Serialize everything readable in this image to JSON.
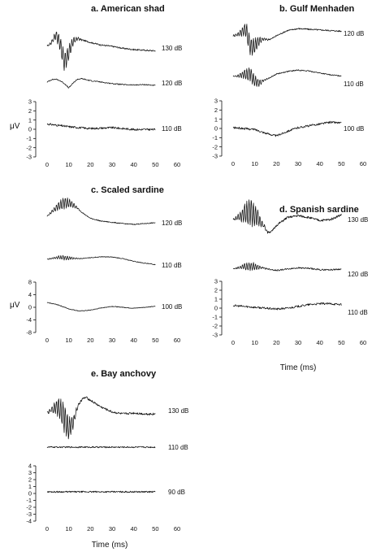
{
  "chart_data": [
    {
      "type": "line",
      "title": "a. American shad",
      "xlabel": "",
      "ylabel": "μV",
      "xlim": [
        0,
        60
      ],
      "ylim": [
        -3,
        3
      ],
      "x_ticks": [
        "0",
        "10",
        "20",
        "30",
        "40",
        "50",
        "60"
      ],
      "y_ticks": [
        "3",
        "2",
        "1",
        "0",
        "-1",
        "-2",
        "-3"
      ],
      "series": [
        {
          "name": "130 dB",
          "x": [
            0,
            2,
            4,
            6,
            8,
            10,
            12,
            14,
            16,
            18,
            20,
            25,
            30,
            35,
            40,
            45,
            50
          ],
          "values": [
            0.0,
            0.6,
            1.8,
            0.5,
            -2.5,
            -1.0,
            0.8,
            1.2,
            1.0,
            0.8,
            0.6,
            0.2,
            0.0,
            -0.3,
            -0.5,
            -0.6,
            -0.7
          ]
        },
        {
          "name": "120 dB",
          "x": [
            0,
            2,
            4,
            6,
            8,
            10,
            12,
            14,
            16,
            18,
            20,
            25,
            30,
            35,
            40,
            45,
            50
          ],
          "values": [
            0.0,
            0.5,
            0.6,
            0.3,
            -0.3,
            -1.2,
            -0.2,
            0.6,
            0.7,
            0.5,
            0.3,
            0.0,
            -0.3,
            -0.5,
            -0.6,
            -0.5,
            -0.7
          ]
        },
        {
          "name": "110 dB",
          "x": [
            0,
            10,
            20,
            30,
            40,
            50
          ],
          "values": [
            0.4,
            0.1,
            -0.1,
            0.0,
            -0.2,
            -0.2
          ]
        }
      ]
    },
    {
      "type": "line",
      "title": "b. Gulf Menhaden",
      "xlabel": "",
      "ylabel": "",
      "xlim": [
        0,
        60
      ],
      "ylim": [
        -3,
        3
      ],
      "x_ticks": [
        "0",
        "10",
        "20",
        "30",
        "40",
        "50",
        "60"
      ],
      "y_ticks": [
        "3",
        "2",
        "1",
        "0",
        "-1",
        "-2",
        "-3"
      ],
      "series": [
        {
          "name": "120 dB",
          "x": [
            0,
            2,
            4,
            6,
            8,
            10,
            12,
            14,
            16,
            18,
            20,
            25,
            30,
            35,
            40,
            45,
            50
          ],
          "values": [
            0.0,
            0.2,
            0.6,
            1.0,
            -1.8,
            -1.5,
            -0.8,
            -0.5,
            -0.6,
            -0.4,
            0.0,
            0.8,
            1.1,
            1.0,
            0.9,
            0.8,
            0.7
          ]
        },
        {
          "name": "110 dB",
          "x": [
            0,
            2,
            4,
            6,
            8,
            10,
            12,
            14,
            16,
            18,
            20,
            25,
            30,
            35,
            40,
            45,
            50
          ],
          "values": [
            0.0,
            0.1,
            0.3,
            0.5,
            0.4,
            -0.9,
            -1.4,
            -0.8,
            -0.5,
            0.0,
            0.5,
            1.0,
            1.3,
            1.1,
            0.7,
            0.3,
            0.1
          ]
        },
        {
          "name": "100 dB",
          "x": [
            0,
            5,
            10,
            15,
            20,
            25,
            30,
            35,
            40,
            45,
            50
          ],
          "values": [
            0.0,
            -0.1,
            -0.2,
            -0.6,
            -0.9,
            -0.4,
            0.0,
            0.2,
            0.4,
            0.6,
            0.5
          ]
        }
      ]
    },
    {
      "type": "line",
      "title": "c. Scaled sardine",
      "xlabel": "",
      "ylabel": "μV",
      "xlim": [
        0,
        60
      ],
      "ylim": [
        -8,
        8
      ],
      "x_ticks": [
        "0",
        "10",
        "20",
        "30",
        "40",
        "50",
        "60"
      ],
      "y_ticks": [
        "8",
        "4",
        "0",
        "-4",
        "-8"
      ],
      "series": [
        {
          "name": "120 dB",
          "x": [
            0,
            2,
            4,
            6,
            8,
            10,
            12,
            14,
            16,
            18,
            20,
            25,
            30,
            35,
            40,
            45,
            50
          ],
          "values": [
            0.0,
            1.0,
            2.0,
            2.8,
            3.2,
            3.3,
            2.8,
            2.0,
            1.0,
            0.2,
            -0.5,
            -1.2,
            -1.5,
            -1.8,
            -2.0,
            -1.8,
            -1.6
          ]
        },
        {
          "name": "110 dB",
          "x": [
            0,
            5,
            10,
            15,
            20,
            25,
            30,
            35,
            40,
            45,
            50
          ],
          "values": [
            0.0,
            0.6,
            0.4,
            0.2,
            0.5,
            0.8,
            0.7,
            0.2,
            -0.6,
            -1.2,
            -1.6
          ]
        },
        {
          "name": "100 dB",
          "x": [
            0,
            5,
            10,
            15,
            20,
            25,
            30,
            35,
            40,
            45,
            50
          ],
          "values": [
            1.5,
            0.8,
            -0.5,
            -1.2,
            -0.9,
            -0.2,
            0.3,
            0.0,
            -0.3,
            0.0,
            0.3
          ]
        }
      ]
    },
    {
      "type": "line",
      "title": "d. Spanish sardine",
      "xlabel": "Time (ms)",
      "ylabel": "",
      "xlim": [
        0,
        60
      ],
      "ylim": [
        -3,
        3
      ],
      "x_ticks": [
        "0",
        "10",
        "20",
        "30",
        "40",
        "50",
        "60"
      ],
      "y_ticks": [
        "3",
        "2",
        "1",
        "0",
        "-1",
        "-2",
        "-3"
      ],
      "series": [
        {
          "name": "130 dB",
          "x": [
            0,
            2,
            4,
            6,
            8,
            10,
            12,
            14,
            16,
            18,
            20,
            25,
            30,
            35,
            40,
            45,
            50
          ],
          "values": [
            0.0,
            0.2,
            0.4,
            0.7,
            0.8,
            0.5,
            0.0,
            -0.6,
            -1.3,
            -1.2,
            -0.6,
            0.2,
            0.4,
            0.2,
            -0.1,
            0.0,
            0.5
          ]
        },
        {
          "name": "120 dB",
          "x": [
            0,
            5,
            10,
            15,
            20,
            25,
            30,
            35,
            40,
            45,
            50
          ],
          "values": [
            0.0,
            0.4,
            0.4,
            0.1,
            -0.2,
            0.0,
            0.2,
            0.1,
            -0.1,
            -0.1,
            0.0
          ]
        },
        {
          "name": "110 dB",
          "x": [
            0,
            5,
            10,
            15,
            20,
            25,
            30,
            35,
            40,
            45,
            50
          ],
          "values": [
            0.2,
            0.1,
            0.0,
            -0.1,
            -0.2,
            -0.1,
            0.1,
            0.3,
            0.4,
            0.4,
            0.3
          ]
        }
      ]
    },
    {
      "type": "line",
      "title": "e. Bay anchovy",
      "xlabel": "Time (ms)",
      "ylabel": "",
      "xlim": [
        0,
        60
      ],
      "ylim": [
        -4,
        4
      ],
      "x_ticks": [
        "0",
        "10",
        "20",
        "30",
        "40",
        "50",
        "60"
      ],
      "y_ticks": [
        "4",
        "3",
        "2",
        "1",
        "0",
        "-1",
        "-2",
        "-3",
        "-4"
      ],
      "series": [
        {
          "name": "130 dB",
          "x": [
            0,
            2,
            4,
            6,
            8,
            10,
            12,
            14,
            16,
            18,
            20,
            25,
            30,
            35,
            40,
            45,
            50
          ],
          "values": [
            0.0,
            0.3,
            0.6,
            0.5,
            -0.6,
            -1.6,
            -1.0,
            0.6,
            1.4,
            1.6,
            1.3,
            0.6,
            0.1,
            -0.1,
            0.0,
            -0.1,
            -0.1
          ]
        },
        {
          "name": "110 dB",
          "x": [
            0,
            10,
            20,
            30,
            40,
            50
          ],
          "values": [
            0.0,
            0.0,
            0.0,
            0.0,
            0.0,
            0.0
          ]
        },
        {
          "name": "90 dB",
          "x": [
            0,
            10,
            20,
            30,
            40,
            50
          ],
          "values": [
            0.0,
            0.0,
            0.0,
            0.0,
            0.0,
            0.0
          ]
        }
      ]
    }
  ]
}
